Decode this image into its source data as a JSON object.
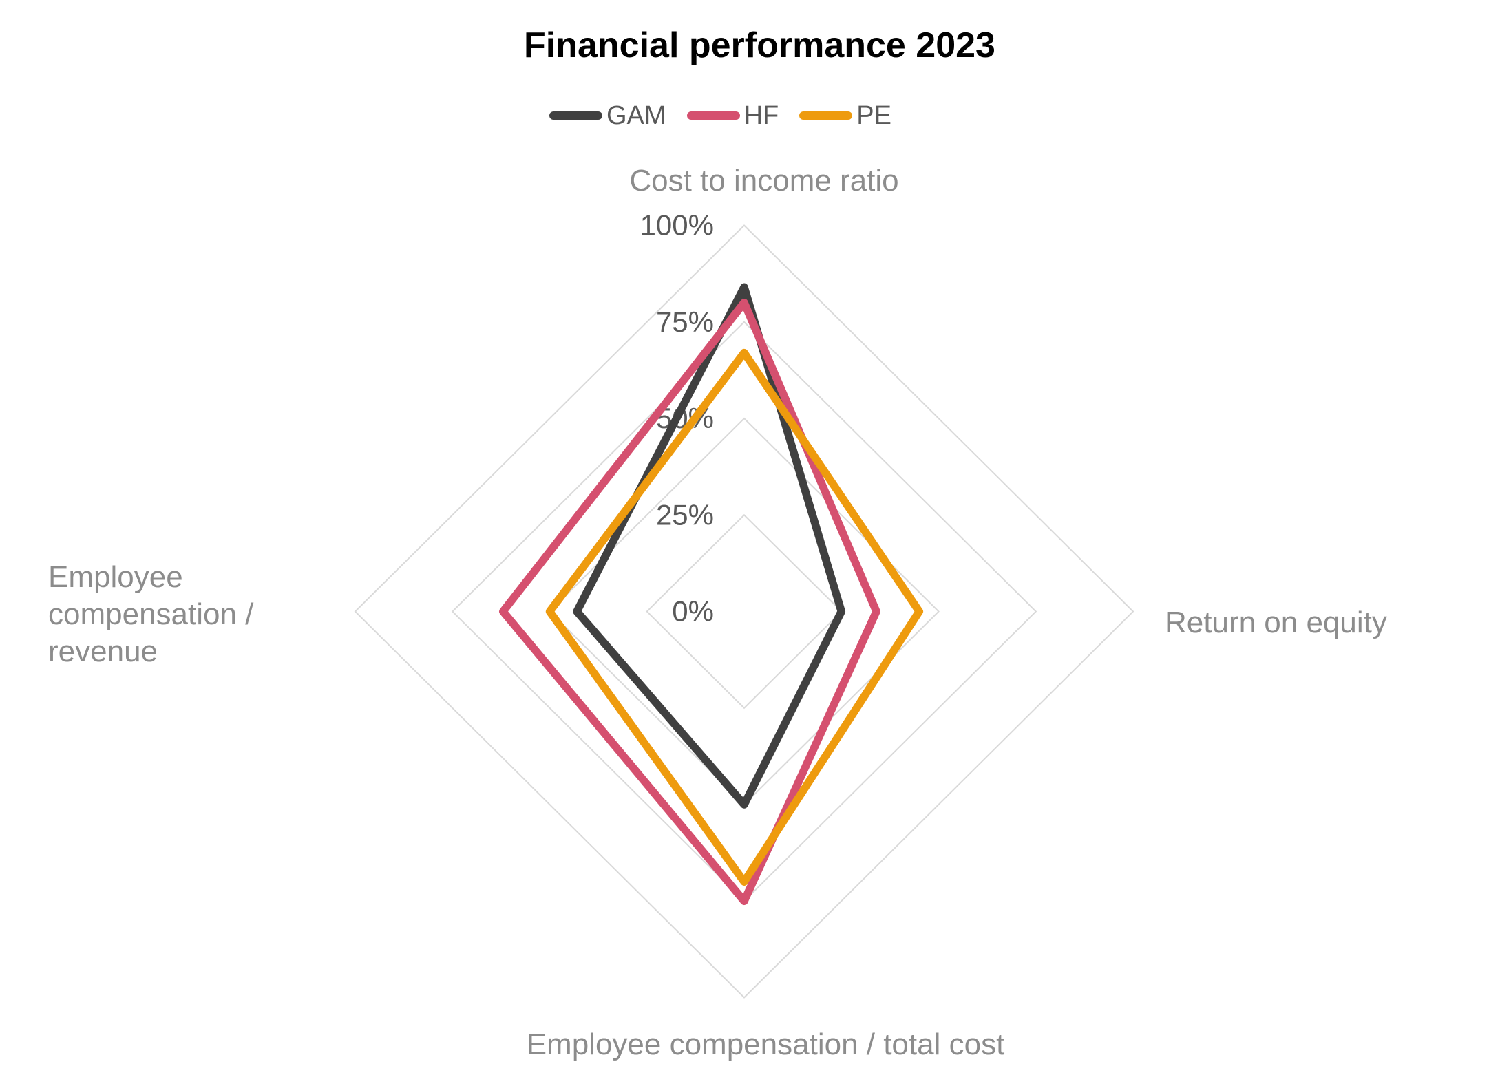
{
  "chart_data": {
    "type": "radar",
    "title": "Financial performance 2023",
    "axes": [
      "Cost to income ratio",
      "Return on equity",
      "Employee compensation / total cost",
      "Employee compensation / revenue"
    ],
    "ticks": [
      {
        "label": "100%",
        "value": 100
      },
      {
        "label": "75%",
        "value": 75
      },
      {
        "label": "50%",
        "value": 50
      },
      {
        "label": "25%",
        "value": 25
      },
      {
        "label": "0%",
        "value": 0
      }
    ],
    "grid_rings_percent": [
      25,
      50,
      75,
      100
    ],
    "value_range": [
      0,
      100
    ],
    "grid": true,
    "grid_color": "#d9d9d9",
    "series": [
      {
        "name": "GAM",
        "color": "#404040",
        "values": [
          84,
          25,
          50,
          43
        ]
      },
      {
        "name": "HF",
        "color": "#d5506f",
        "values": [
          80,
          34,
          75,
          62
        ]
      },
      {
        "name": "PE",
        "color": "#ee9b0e",
        "values": [
          67,
          45,
          70,
          50
        ]
      }
    ],
    "legend_position": "top",
    "text_colors": {
      "title": "#000000",
      "axis_labels": "#8c8c8c",
      "tick_labels": "#595959",
      "legend": "#595959"
    }
  }
}
